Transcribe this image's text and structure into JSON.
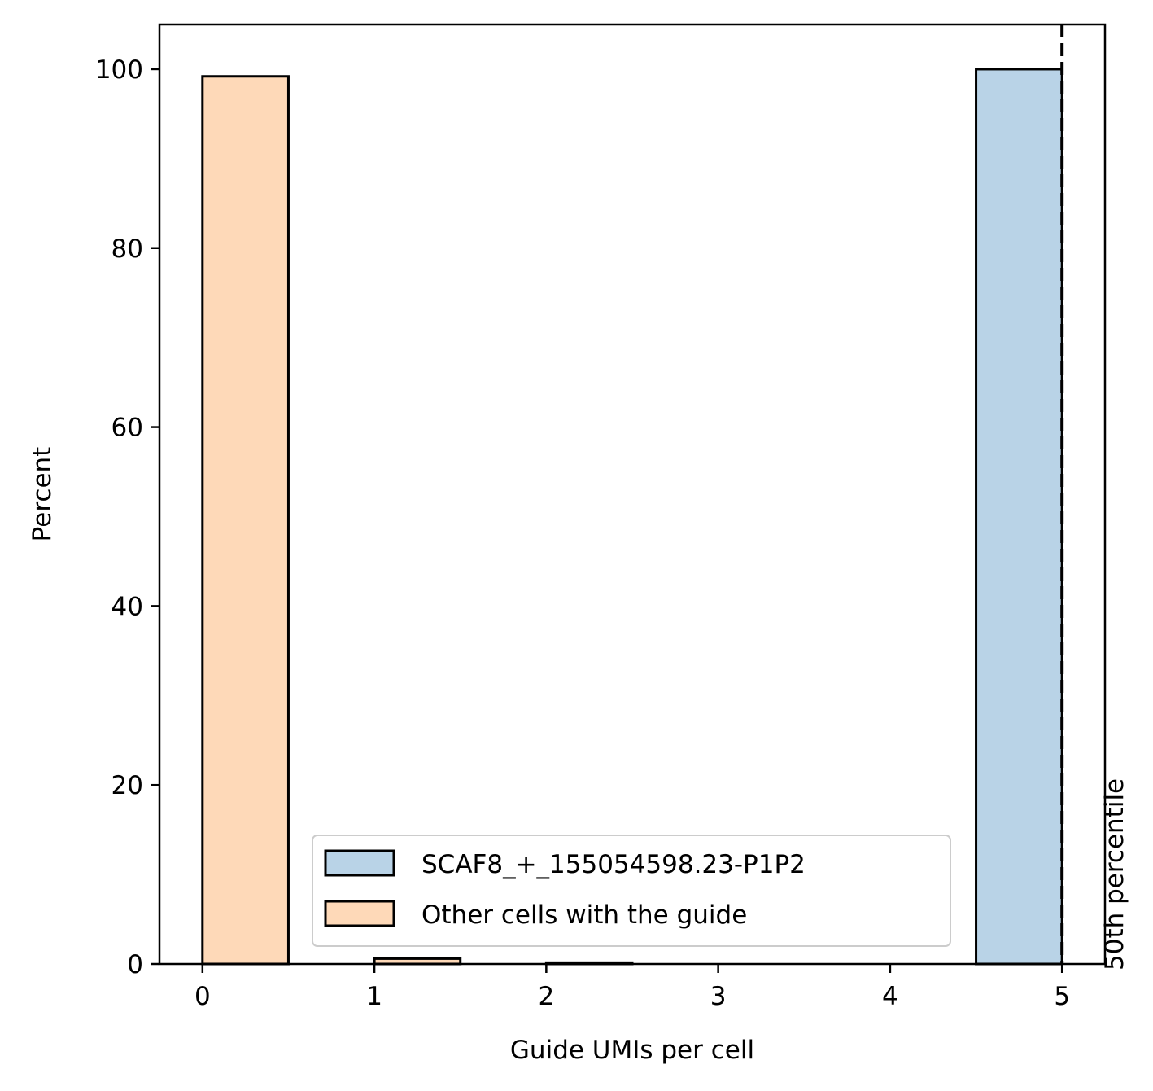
{
  "chart_data": {
    "type": "bar",
    "xlabel": "Guide UMIs per cell",
    "ylabel": "Percent",
    "xlim": [
      -0.25,
      5.25
    ],
    "ylim": [
      0,
      105
    ],
    "xticks": [
      0,
      1,
      2,
      3,
      4,
      5
    ],
    "yticks": [
      0,
      20,
      40,
      60,
      80,
      100
    ],
    "bin_width": 0.5,
    "series": [
      {
        "name": "SCAF8_+_155054598.23-P1P2",
        "color": "#b9d3e7",
        "bins": [
          {
            "x": 4.5,
            "value": 100
          }
        ]
      },
      {
        "name": "Other cells with the guide",
        "color": "#fed9b8",
        "bins": [
          {
            "x": 0,
            "value": 99.2
          },
          {
            "x": 1,
            "value": 0.6
          },
          {
            "x": 2,
            "value": 0.15
          }
        ]
      }
    ],
    "vline": {
      "x": 5,
      "style": "dashed",
      "label": "50th percentile"
    },
    "legend": {
      "placement": "bottom-right"
    },
    "grid": false
  }
}
